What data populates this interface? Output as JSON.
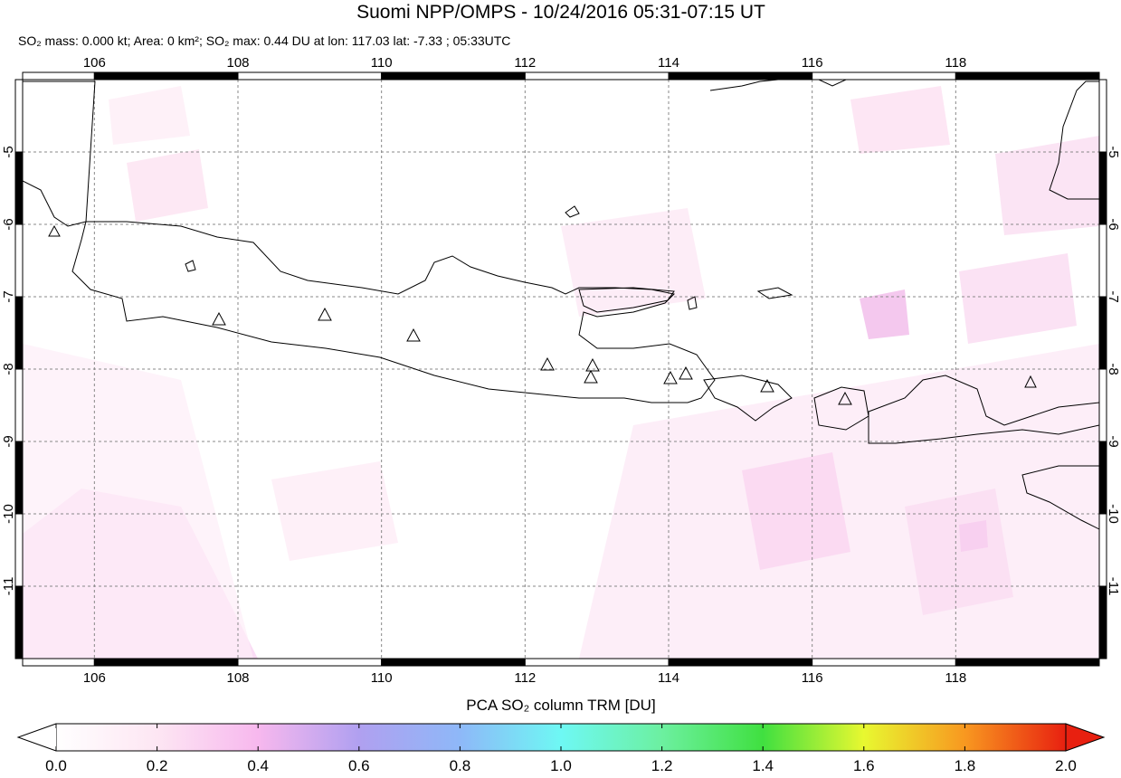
{
  "map": {
    "title": "Suomi NPP/OMPS - 10/24/2016 05:31-07:15 UT",
    "subtitle": "SO₂ mass: 0.000 kt; Area: 0 km²; SO₂ max: 0.44 DU at lon: 117.03 lat: -7.33 ; 05:33UTC",
    "xlim": [
      105,
      120
    ],
    "ylim": [
      -12,
      -4
    ],
    "xticks": [
      106,
      108,
      110,
      112,
      114,
      116,
      118
    ],
    "yticks": [
      -5,
      -6,
      -7,
      -8,
      -9,
      -10,
      -11
    ],
    "grid": true,
    "colorbar": {
      "label": "PCA SO₂ column TRM [DU]",
      "lim": [
        0,
        2
      ],
      "ticks": [
        {
          "value": 0,
          "label": "0.0"
        },
        {
          "value": 0.2,
          "label": "0.2"
        },
        {
          "value": 0.4,
          "label": "0.4"
        },
        {
          "value": 0.6,
          "label": "0.6"
        },
        {
          "value": 0.8,
          "label": "0.8"
        },
        {
          "value": 1,
          "label": "1.0"
        },
        {
          "value": 1.2,
          "label": "1.2"
        },
        {
          "value": 1.4,
          "label": "1.4"
        },
        {
          "value": 1.6,
          "label": "1.6"
        },
        {
          "value": 1.8,
          "label": "1.8"
        },
        {
          "value": 2,
          "label": "2.0"
        }
      ]
    }
  }
}
